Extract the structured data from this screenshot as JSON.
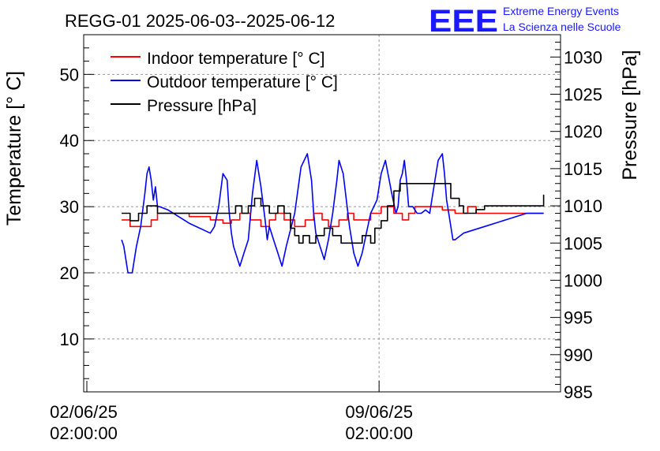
{
  "chart_data": {
    "type": "line",
    "title": "REGG-01 2025-06-03--2025-06-12",
    "ylabel_left": "Temperature [° C]",
    "ylabel_right": "Pressure [hPa]",
    "xlim_days": [
      0,
      11.3
    ],
    "ylim_left": [
      2,
      56
    ],
    "ylim_right": [
      985,
      1033
    ],
    "left_ticks": [
      10,
      20,
      30,
      40,
      50
    ],
    "right_ticks": [
      985,
      990,
      995,
      1000,
      1005,
      1010,
      1015,
      1020,
      1025,
      1030
    ],
    "x_ticks": [
      {
        "day": 0,
        "date": "02/06/25",
        "time": "02:00:00"
      },
      {
        "day": 7,
        "date": "09/06/25",
        "time": "02:00:00"
      }
    ],
    "grid": true,
    "legend_position": "top-left",
    "series": [
      {
        "name": "Indoor temperature [° C]",
        "axis": "left",
        "color": "#ff0000",
        "step": true,
        "x": [
          0.9,
          1.1,
          1.35,
          1.6,
          1.75,
          2.0,
          2.5,
          3.0,
          3.3,
          3.5,
          3.7,
          3.95,
          4.2,
          4.4,
          4.55,
          4.75,
          5.0,
          5.25,
          5.45,
          5.65,
          5.8,
          6.05,
          6.25,
          6.4,
          6.6,
          6.8,
          7.05,
          7.35,
          7.55,
          7.7,
          7.85,
          8.1,
          8.5,
          8.8,
          9.1,
          9.3,
          9.5,
          10.9
        ],
        "y": [
          28,
          27,
          27,
          28,
          29,
          29,
          28.5,
          28,
          27.5,
          28,
          29,
          28,
          27,
          28,
          29,
          28,
          27,
          28,
          29,
          28,
          27,
          28,
          29,
          28,
          28,
          29,
          30,
          29,
          28,
          29,
          30,
          30,
          29.5,
          29,
          30,
          29,
          29,
          29
        ]
      },
      {
        "name": "Outdoor temperature [° C]",
        "axis": "left",
        "color": "#0000ff",
        "step": false,
        "x": [
          0.9,
          0.95,
          1.05,
          1.15,
          1.25,
          1.35,
          1.45,
          1.5,
          1.55,
          1.6,
          1.65,
          1.7,
          1.75,
          1.8,
          2.0,
          2.5,
          3.0,
          3.1,
          3.2,
          3.3,
          3.4,
          3.45,
          3.5,
          3.55,
          3.6,
          3.7,
          3.8,
          3.9,
          4.0,
          4.1,
          4.2,
          4.3,
          4.35,
          4.4,
          4.5,
          4.6,
          4.7,
          4.8,
          5.0,
          5.15,
          5.3,
          5.4,
          5.45,
          5.5,
          5.6,
          5.7,
          5.8,
          5.9,
          6.0,
          6.05,
          6.15,
          6.3,
          6.4,
          6.5,
          6.6,
          6.7,
          6.8,
          6.95,
          7.05,
          7.15,
          7.3,
          7.4,
          7.45,
          7.5,
          7.55,
          7.6,
          7.65,
          7.7,
          7.8,
          7.9,
          8.0,
          8.1,
          8.2,
          8.3,
          8.4,
          8.5,
          8.55,
          8.6,
          8.65,
          8.75,
          8.8,
          9.0,
          9.5,
          10.0,
          10.5,
          10.9
        ],
        "y": [
          25,
          24,
          20,
          20,
          24,
          27,
          32,
          35,
          36,
          34,
          31,
          33,
          30,
          30,
          29.5,
          27.5,
          26,
          27,
          30,
          35,
          34,
          29,
          26,
          24,
          23,
          21,
          23,
          25,
          32,
          37,
          33,
          28,
          25,
          27,
          25,
          23,
          21,
          24,
          29,
          36,
          38,
          34,
          29,
          26,
          24,
          22,
          25,
          29,
          34,
          37,
          35,
          27,
          23,
          21,
          23,
          26,
          29,
          31,
          35,
          37,
          32,
          29,
          30,
          34,
          35,
          37,
          34,
          30,
          30,
          29,
          29,
          29.5,
          29,
          33,
          37,
          38,
          35,
          31,
          29,
          25,
          25,
          26,
          27,
          28,
          29,
          29
        ]
      },
      {
        "name": "Pressure [hPa]",
        "axis": "right",
        "color": "#000000",
        "step": true,
        "x": [
          0.9,
          1.1,
          1.3,
          1.5,
          1.6,
          1.75,
          2.0,
          2.5,
          3.0,
          3.2,
          3.4,
          3.6,
          3.75,
          3.9,
          4.05,
          4.2,
          4.3,
          4.4,
          4.6,
          4.75,
          4.9,
          5.0,
          5.1,
          5.2,
          5.35,
          5.5,
          5.7,
          5.9,
          6.1,
          6.3,
          6.45,
          6.6,
          6.8,
          6.9,
          7.05,
          7.2,
          7.35,
          7.5,
          7.7,
          7.9,
          8.1,
          8.3,
          8.5,
          8.7,
          8.9,
          9.0,
          9.1,
          9.3,
          9.5,
          10.9
        ],
        "y": [
          1009,
          1008,
          1009,
          1010,
          1010,
          1009,
          1009,
          1009,
          1009,
          1009,
          1009,
          1010,
          1009,
          1010,
          1011,
          1010,
          1010,
          1009,
          1010,
          1009,
          1007,
          1006,
          1005,
          1006,
          1005,
          1006,
          1007,
          1006,
          1005,
          1005,
          1005,
          1006,
          1005,
          1007,
          1008,
          1010,
          1012,
          1013,
          1013,
          1013,
          1013,
          1013,
          1013,
          1011,
          1010,
          1009,
          1009,
          1009.5,
          1010,
          1011.5
        ]
      }
    ]
  },
  "logo": {
    "mark": "EEE",
    "line1": "Extreme Energy Events",
    "line2": "La Scienza nelle Scuole",
    "color": "#1a1aff"
  }
}
